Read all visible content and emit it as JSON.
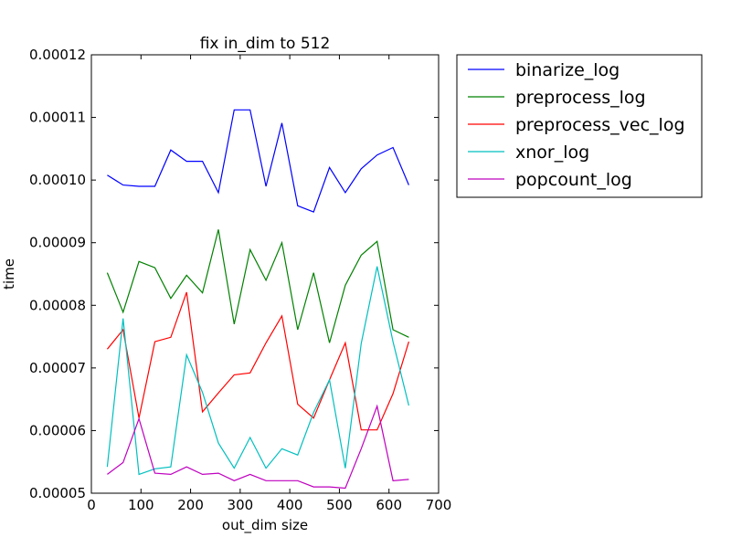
{
  "chart_data": {
    "type": "line",
    "title": "fix in_dim to 512",
    "xlabel": "out_dim size",
    "ylabel": "time",
    "xlim": [
      0,
      700
    ],
    "ylim": [
      5e-05,
      0.00012
    ],
    "x_ticks": [
      "0",
      "100",
      "200",
      "300",
      "400",
      "500",
      "600",
      "700"
    ],
    "y_ticks": [
      "0.00005",
      "0.00006",
      "0.00007",
      "0.00008",
      "0.00009",
      "0.00010",
      "0.00011",
      "0.00012"
    ],
    "grid": false,
    "legend_position": "outside-right-top",
    "x": [
      32,
      64,
      96,
      128,
      160,
      192,
      224,
      256,
      288,
      320,
      352,
      384,
      416,
      448,
      480,
      512,
      544,
      576,
      608,
      640
    ],
    "series": [
      {
        "name": "binarize_log",
        "color": "#0000ff",
        "values": [
          0.0001008,
          9.92e-05,
          9.9e-05,
          9.9e-05,
          0.0001048,
          0.000103,
          0.000103,
          9.8e-05,
          0.0001112,
          0.0001112,
          9.9e-05,
          0.0001091,
          9.59e-05,
          9.49e-05,
          0.000102,
          9.8e-05,
          0.0001018,
          0.000104,
          0.0001052,
          9.92e-05
        ]
      },
      {
        "name": "preprocess_log",
        "color": "#008000",
        "values": [
          8.52e-05,
          7.89e-05,
          8.7e-05,
          8.6e-05,
          8.11e-05,
          8.48e-05,
          8.2e-05,
          9.21e-05,
          7.7e-05,
          8.89e-05,
          8.4e-05,
          9e-05,
          7.61e-05,
          8.52e-05,
          7.4e-05,
          8.32e-05,
          8.8e-05,
          9.02e-05,
          7.61e-05,
          7.49e-05
        ]
      },
      {
        "name": "preprocess_vec_log",
        "color": "#ff0000",
        "values": [
          7.3e-05,
          7.61e-05,
          6.2e-05,
          7.42e-05,
          7.49e-05,
          8.21e-05,
          6.3e-05,
          6.6e-05,
          6.89e-05,
          6.92e-05,
          7.4e-05,
          7.83e-05,
          6.42e-05,
          6.2e-05,
          6.81e-05,
          7.4e-05,
          6.01e-05,
          6.01e-05,
          6.59e-05,
          7.42e-05
        ]
      },
      {
        "name": "xnor_log",
        "color": "#00bfbf",
        "values": [
          5.42e-05,
          7.79e-05,
          5.3e-05,
          5.39e-05,
          5.42e-05,
          7.21e-05,
          6.61e-05,
          5.8e-05,
          5.4e-05,
          5.89e-05,
          5.4e-05,
          5.71e-05,
          5.61e-05,
          6.29e-05,
          6.81e-05,
          5.4e-05,
          7.39e-05,
          8.62e-05,
          7.42e-05,
          6.4e-05
        ]
      },
      {
        "name": "popcount_log",
        "color": "#bf00bf",
        "values": [
          5.3e-05,
          5.49e-05,
          6.19e-05,
          5.32e-05,
          5.3e-05,
          5.42e-05,
          5.3e-05,
          5.32e-05,
          5.2e-05,
          5.3e-05,
          5.2e-05,
          5.2e-05,
          5.2e-05,
          5.1e-05,
          5.1e-05,
          5.08e-05,
          5.71e-05,
          6.39e-05,
          5.2e-05,
          5.22e-05
        ]
      }
    ]
  }
}
